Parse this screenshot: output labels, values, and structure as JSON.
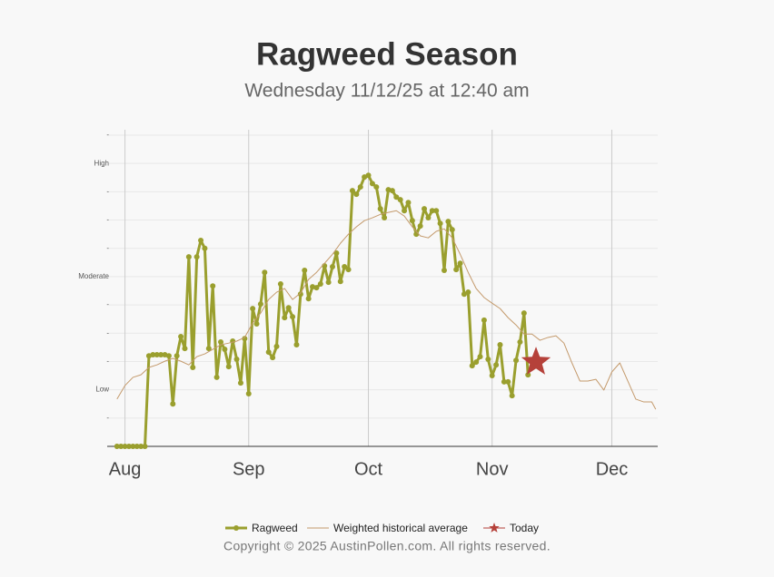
{
  "title": "Ragweed Season",
  "subtitle": "Wednesday 11/12/25 at 12:40 am",
  "footer": "Copyright © 2025 AustinPollen.com.  All rights reserved.",
  "chart_data": {
    "type": "line",
    "grid": true,
    "legend": "bottom",
    "xlim": [
      -4,
      133.5
    ],
    "xticks": [
      {
        "value": 0,
        "label": "Aug"
      },
      {
        "value": 31,
        "label": "Sep"
      },
      {
        "value": 61,
        "label": "Oct"
      },
      {
        "value": 92,
        "label": "Nov"
      },
      {
        "value": 122,
        "label": "Dec"
      }
    ],
    "ylim": [
      0,
      11
    ],
    "yticks": [
      {
        "value": 1,
        "label": "-"
      },
      {
        "value": 2,
        "label": "Low"
      },
      {
        "value": 3,
        "label": "-"
      },
      {
        "value": 4,
        "label": "-"
      },
      {
        "value": 5,
        "label": "-"
      },
      {
        "value": 6,
        "label": "Moderate"
      },
      {
        "value": 7,
        "label": "-"
      },
      {
        "value": 8,
        "label": "-"
      },
      {
        "value": 9,
        "label": "-"
      },
      {
        "value": 10,
        "label": "High"
      },
      {
        "value": 11,
        "label": "-"
      }
    ],
    "series": [
      {
        "name": "Ragweed",
        "color": "#9a9f2e",
        "x": [
          -2,
          -1,
          0,
          1,
          2,
          3,
          4,
          5,
          6,
          7,
          8,
          9,
          10,
          11,
          12,
          13,
          14,
          15,
          16,
          17,
          18,
          19,
          20,
          21,
          22,
          23,
          24,
          25,
          26,
          27,
          28,
          29,
          30,
          31,
          32,
          33,
          34,
          35,
          36,
          37,
          38,
          39,
          40,
          41,
          42,
          43,
          44,
          45,
          46,
          47,
          48,
          49,
          50,
          51,
          52,
          53,
          54,
          55,
          56,
          57,
          58,
          59,
          60,
          61,
          62,
          63,
          64,
          65,
          66,
          67,
          68,
          69,
          70,
          71,
          72,
          73,
          74,
          75,
          76,
          77,
          78,
          79,
          80,
          81,
          82,
          83,
          84,
          85,
          86,
          87,
          88,
          89,
          90,
          91,
          92,
          93,
          94,
          95,
          96,
          97,
          98,
          99,
          100,
          101
        ],
        "values": [
          0,
          0,
          0,
          0,
          0,
          0,
          0,
          0,
          3.2,
          3.24,
          3.24,
          3.24,
          3.24,
          3.2,
          1.5,
          3.2,
          3.88,
          3.46,
          6.7,
          2.79,
          6.7,
          7.28,
          7.0,
          3.46,
          5.67,
          2.44,
          3.69,
          3.43,
          2.82,
          3.72,
          3.08,
          2.24,
          3.81,
          1.86,
          4.87,
          4.33,
          5.03,
          6.15,
          3.33,
          3.14,
          3.53,
          5.74,
          4.55,
          4.9,
          4.58,
          3.59,
          5.38,
          6.22,
          5.22,
          5.64,
          5.61,
          5.74,
          6.38,
          5.8,
          6.35,
          6.83,
          5.83,
          6.35,
          6.25,
          9.04,
          8.91,
          9.17,
          9.52,
          9.58,
          9.29,
          9.17,
          8.4,
          8.08,
          9.07,
          9.04,
          8.81,
          8.72,
          8.33,
          8.62,
          7.98,
          7.5,
          7.79,
          8.4,
          8.08,
          8.33,
          8.33,
          7.88,
          6.22,
          7.95,
          7.66,
          6.25,
          6.47,
          5.38,
          5.45,
          2.85,
          2.98,
          3.17,
          4.46,
          3.08,
          2.5,
          2.88,
          3.59,
          2.28,
          2.28,
          1.79,
          3.04,
          3.69,
          4.71,
          2.53
        ]
      },
      {
        "name": "Weighted historical average",
        "color": "#c49a6c",
        "x": [
          -2,
          0,
          2,
          4,
          6,
          8,
          10,
          12,
          14,
          16,
          18,
          20,
          22,
          24,
          26,
          28,
          30,
          32,
          34,
          36,
          38,
          40,
          42,
          44,
          46,
          48,
          50,
          52,
          54,
          56,
          58,
          60,
          62,
          64,
          66,
          68,
          70,
          72,
          74,
          76,
          78,
          80,
          82,
          84,
          86,
          88,
          90,
          92,
          94,
          96,
          98,
          100,
          102,
          104,
          106,
          108,
          110,
          112,
          114,
          116,
          118,
          120,
          122,
          124,
          126,
          128,
          130,
          132,
          133
        ],
        "values": [
          1.67,
          2.15,
          2.44,
          2.53,
          2.79,
          2.88,
          3.01,
          3.11,
          3.01,
          2.88,
          3.17,
          3.27,
          3.43,
          3.59,
          3.65,
          3.72,
          3.85,
          4.36,
          4.71,
          5.19,
          5.45,
          5.58,
          5.19,
          5.42,
          5.9,
          6.15,
          6.47,
          6.79,
          7.18,
          7.5,
          7.76,
          7.98,
          8.08,
          8.2,
          8.27,
          8.33,
          8.14,
          7.76,
          7.44,
          7.37,
          7.6,
          7.69,
          7.37,
          6.79,
          6.15,
          5.58,
          5.26,
          5.06,
          4.87,
          4.55,
          4.29,
          3.97,
          3.97,
          3.75,
          3.85,
          3.91,
          3.65,
          2.95,
          2.31,
          2.31,
          2.37,
          1.99,
          2.63,
          2.95,
          2.31,
          1.67,
          1.57,
          1.57,
          1.31
        ]
      },
      {
        "name": "Today",
        "color": "#b5413a",
        "x": [
          103
        ],
        "values": [
          2.98
        ]
      }
    ]
  }
}
